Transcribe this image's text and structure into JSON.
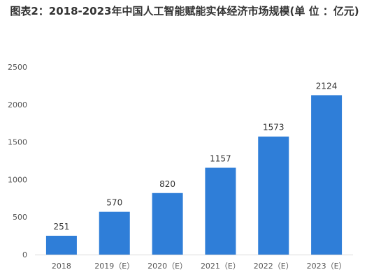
{
  "chart_data": {
    "type": "bar",
    "title": "图表2：2018-2023年中国人工智能赋能实体经济市场规模(单 位 ：亿元)",
    "xlabel": "",
    "ylabel": "",
    "categories": [
      "2018",
      "2019（E）",
      "2020（E）",
      "2021（E）",
      "2022（E）",
      "2023（E）"
    ],
    "values": [
      251,
      570,
      820,
      1157,
      1573,
      2124
    ],
    "ylim": [
      0,
      2500
    ],
    "yticks": [
      0,
      500,
      1000,
      1500,
      2000,
      2500
    ],
    "grid": false,
    "legend": "none",
    "bar_color": "#2f7ed8"
  }
}
